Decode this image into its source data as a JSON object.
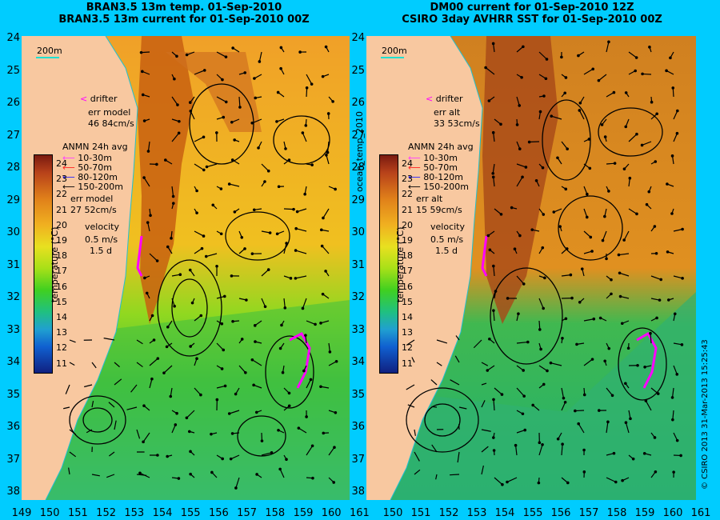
{
  "left": {
    "title1": "BRAN3.5 13m temp. 01-Sep-2010",
    "title2": "BRAN3.5 13m current for 01-Sep-2010 00Z",
    "scale_label": "200m",
    "drifter": "drifter",
    "err1_label": "err model",
    "err1_value": "46 84cm/s",
    "anmn": "ANMN 24h avg",
    "depths": [
      "10-30m",
      "50-70m",
      "80-120m",
      "150-200m"
    ],
    "err2_label": "err model",
    "err2_value": "27 52cm/s",
    "velocity": "velocity",
    "vel1": "0.5 m/s",
    "vel2": "1.5 d"
  },
  "right": {
    "title1": "DM00 current for 01-Sep-2010 12Z",
    "title2": "CSIRO 3day AVHRR SST for 01-Sep-2010 00Z",
    "scale_label": "200m",
    "drifter": "drifter",
    "err1_label": "err alt",
    "err1_value": "33 53cm/s",
    "anmn": "ANMN 24h avg",
    "depths": [
      "10-30m",
      "50-70m",
      "80-120m",
      "150-200m"
    ],
    "err2_label": "err alt",
    "err2_value": "15 59cm/s",
    "velocity": "velocity",
    "vel1": "0.5 m/s",
    "vel2": "1.5 d"
  },
  "y_ticks": [
    "24",
    "25",
    "26",
    "27",
    "28",
    "29",
    "30",
    "31",
    "32",
    "33",
    "34",
    "35",
    "36",
    "37",
    "38"
  ],
  "x_ticks_left": [
    "149",
    "150",
    "151",
    "152",
    "153",
    "154",
    "155",
    "156",
    "157",
    "158",
    "159",
    "160",
    "161"
  ],
  "x_ticks_right": [
    "150",
    "151",
    "152",
    "153",
    "154",
    "155",
    "156",
    "157",
    "158",
    "159",
    "160",
    "161"
  ],
  "colorbar_ticks": [
    "24",
    "23",
    "22",
    "21",
    "20",
    "19",
    "18",
    "17",
    "16",
    "15",
    "14",
    "13",
    "12",
    "11"
  ],
  "colorbar_label": "temperature (°C)",
  "center_label": "ocean_temp_2010",
  "copyright": "© CSIRO 2013  31-Mar-2013 15:25:43",
  "colors": {
    "background": "#00ccff",
    "land": "#f8c8a0",
    "drifter": "#ff00ff",
    "depth1": "#ff40ff",
    "depth2": "#ff2020",
    "depth3": "#2020ff",
    "depth4": "#000000"
  }
}
